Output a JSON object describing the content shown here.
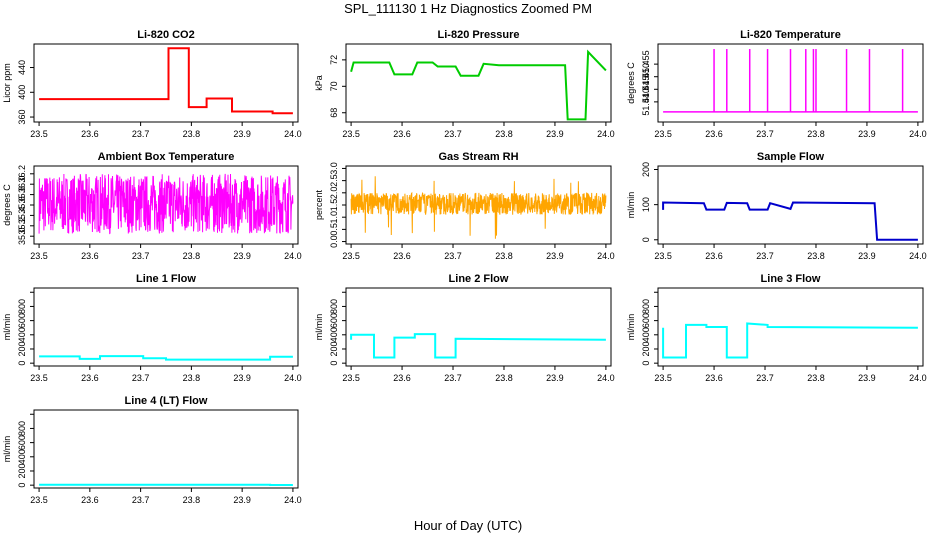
{
  "figure": {
    "title": "SPL_111130  1 Hz Diagnostics Zoomed PM",
    "xlabel": "Hour of Day (UTC)"
  },
  "chart_data": [
    {
      "type": "line",
      "title": "Li-820 CO2",
      "ylabel": "Licor ppm",
      "color": "#ff0000",
      "xlim": [
        23.49,
        24.01
      ],
      "ylim": [
        352,
        478
      ],
      "yticks": [
        360,
        400,
        440
      ],
      "yticklabels": [
        "360",
        "400",
        "440"
      ],
      "xticks": [
        23.5,
        23.6,
        23.7,
        23.8,
        23.9,
        24.0
      ],
      "series": [
        {
          "x": [
            23.5,
            23.755,
            23.755,
            23.795,
            23.795,
            23.83,
            23.83,
            23.88,
            23.88,
            23.96,
            23.96,
            24.0
          ],
          "y": [
            389,
            389,
            471,
            471,
            376,
            376,
            390,
            390,
            369,
            369,
            366,
            366
          ]
        }
      ]
    },
    {
      "type": "line",
      "title": "Li-820 Pressure",
      "ylabel": "kPa",
      "color": "#00cc00",
      "xlim": [
        23.49,
        24.01
      ],
      "ylim": [
        67.3,
        73.2
      ],
      "yticks": [
        68,
        70,
        72
      ],
      "yticklabels": [
        "68",
        "70",
        "72"
      ],
      "xticks": [
        23.5,
        23.6,
        23.7,
        23.8,
        23.9,
        24.0
      ],
      "series": [
        {
          "x": [
            23.5,
            23.505,
            23.575,
            23.585,
            23.62,
            23.63,
            23.66,
            23.67,
            23.705,
            23.715,
            23.75,
            23.76,
            23.79,
            23.8,
            23.92,
            23.925,
            23.96,
            23.965,
            24.0
          ],
          "y": [
            71.1,
            71.8,
            71.8,
            70.9,
            70.9,
            71.8,
            71.8,
            71.5,
            71.5,
            70.8,
            70.8,
            71.7,
            71.6,
            71.6,
            71.6,
            67.5,
            67.5,
            72.6,
            71.2
          ]
        }
      ]
    },
    {
      "type": "line",
      "title": "Li-820 Temperature",
      "ylabel": "degrees C",
      "color": "#ff00ff",
      "xlim": [
        23.49,
        24.01
      ],
      "ylim": [
        51.432,
        51.463
      ],
      "yticks": [
        51.44,
        51.445,
        51.45,
        51.455
      ],
      "yticklabels": [
        "51.440",
        "51.445",
        "51.450",
        "51.455"
      ],
      "xticks": [
        23.5,
        23.6,
        23.7,
        23.8,
        23.9,
        24.0
      ],
      "baseline": 51.436,
      "spike_top": 51.461,
      "spikes_x": [
        23.6,
        23.625,
        23.67,
        23.705,
        23.75,
        23.78,
        23.795,
        23.8,
        23.86,
        23.905,
        23.97
      ]
    },
    {
      "type": "line",
      "title": "Ambient Box Temperature",
      "ylabel": "degrees C",
      "color": "#ff00ff",
      "xlim": [
        23.49,
        24.01
      ],
      "ylim": [
        34.85,
        36.35
      ],
      "yticks": [
        35.0,
        35.2,
        35.4,
        35.6,
        35.8,
        36.0,
        36.2
      ],
      "yticklabels": [
        "35.0",
        "35.2",
        "35.4",
        "35.6",
        "35.8",
        "36.0",
        "36.2"
      ],
      "xticks": [
        23.5,
        23.6,
        23.7,
        23.8,
        23.9,
        24.0
      ],
      "noise": {
        "center": 35.55,
        "low": 35.05,
        "high": 36.2,
        "n": 900
      }
    },
    {
      "type": "line",
      "title": "Gas Stream RH",
      "ylabel": "percent",
      "color": "#ffa500",
      "xlim": [
        23.49,
        24.01
      ],
      "ylim": [
        -0.1,
        3.1
      ],
      "yticks": [
        0,
        0.5,
        1,
        1.5,
        2,
        2.5,
        3
      ],
      "yticklabels": [
        "0.0",
        "0.5",
        "1.0",
        "1.5",
        "2.0",
        "2.5",
        "3.0"
      ],
      "xticks": [
        23.5,
        23.6,
        23.7,
        23.8,
        23.9,
        24.0
      ],
      "noise": {
        "center": 1.55,
        "low": 1.1,
        "high": 2.0,
        "n": 900,
        "outliers_low": 0.1,
        "outliers_high": 2.9
      }
    },
    {
      "type": "line",
      "title": "Sample Flow",
      "ylabel": "ml/min",
      "color": "#0000cc",
      "xlim": [
        23.49,
        24.01
      ],
      "ylim": [
        -12,
        210
      ],
      "yticks": [
        0,
        100,
        200
      ],
      "yticklabels": [
        "0",
        "100",
        "200"
      ],
      "xticks": [
        23.5,
        23.6,
        23.7,
        23.8,
        23.9,
        24.0
      ],
      "series": [
        {
          "x": [
            23.5,
            23.5,
            23.58,
            23.585,
            23.62,
            23.625,
            23.665,
            23.67,
            23.705,
            23.71,
            23.75,
            23.755,
            23.915,
            23.92,
            24.0
          ],
          "y": [
            85,
            106,
            104,
            86,
            86,
            105,
            104,
            86,
            86,
            104,
            88,
            106,
            104,
            0,
            0
          ]
        }
      ]
    },
    {
      "type": "line",
      "title": "Line 1 Flow",
      "ylabel": "ml/min",
      "color": "#00ffff",
      "xlim": [
        23.49,
        24.01
      ],
      "ylim": [
        -40,
        1060
      ],
      "yticks": [
        0,
        200,
        400,
        600,
        800,
        1000
      ],
      "yticklabels": [
        "0",
        "200",
        "400",
        "600",
        "800",
        ""
      ],
      "xticks": [
        23.5,
        23.6,
        23.7,
        23.8,
        23.9,
        24.0
      ],
      "series": [
        {
          "x": [
            23.5,
            23.58,
            23.58,
            23.62,
            23.62,
            23.705,
            23.705,
            23.75,
            23.75,
            23.955,
            23.955,
            24.0
          ],
          "y": [
            95,
            95,
            60,
            60,
            100,
            100,
            70,
            70,
            50,
            50,
            90,
            90
          ]
        }
      ]
    },
    {
      "type": "line",
      "title": "Line 2 Flow",
      "ylabel": "ml/min",
      "color": "#00ffff",
      "xlim": [
        23.49,
        24.01
      ],
      "ylim": [
        -40,
        1060
      ],
      "yticks": [
        0,
        200,
        400,
        600,
        800,
        1000
      ],
      "yticklabels": [
        "0",
        "200",
        "400",
        "600",
        "800",
        ""
      ],
      "xticks": [
        23.5,
        23.6,
        23.7,
        23.8,
        23.9,
        24.0
      ],
      "series": [
        {
          "x": [
            23.5,
            23.5,
            23.545,
            23.545,
            23.585,
            23.585,
            23.625,
            23.625,
            23.665,
            23.665,
            23.705,
            23.705,
            24.0
          ],
          "y": [
            330,
            400,
            400,
            80,
            80,
            360,
            360,
            410,
            410,
            80,
            80,
            345,
            330
          ]
        }
      ]
    },
    {
      "type": "line",
      "title": "Line 3 Flow",
      "ylabel": "ml/min",
      "color": "#00ffff",
      "xlim": [
        23.49,
        24.01
      ],
      "ylim": [
        -40,
        1060
      ],
      "yticks": [
        0,
        200,
        400,
        600,
        800,
        1000
      ],
      "yticklabels": [
        "0",
        "200",
        "400",
        "600",
        "800",
        ""
      ],
      "xticks": [
        23.5,
        23.6,
        23.7,
        23.8,
        23.9,
        24.0
      ],
      "series": [
        {
          "x": [
            23.5,
            23.5,
            23.505,
            23.545,
            23.545,
            23.585,
            23.585,
            23.625,
            23.625,
            23.665,
            23.665,
            23.705,
            23.705,
            24.0
          ],
          "y": [
            500,
            80,
            80,
            80,
            540,
            540,
            510,
            510,
            80,
            80,
            560,
            540,
            510,
            500
          ]
        }
      ]
    },
    {
      "type": "line",
      "title": "Line 4 (LT) Flow",
      "ylabel": "ml/min",
      "color": "#00ffff",
      "xlim": [
        23.49,
        24.01
      ],
      "ylim": [
        -40,
        1060
      ],
      "yticks": [
        0,
        200,
        400,
        600,
        800,
        1000
      ],
      "yticklabels": [
        "0",
        "200",
        "400",
        "600",
        "800",
        ""
      ],
      "xticks": [
        23.5,
        23.6,
        23.7,
        23.8,
        23.9,
        24.0
      ],
      "series": [
        {
          "x": [
            23.5,
            23.955,
            23.955,
            24.0
          ],
          "y": [
            5,
            5,
            2,
            2
          ]
        }
      ]
    }
  ]
}
